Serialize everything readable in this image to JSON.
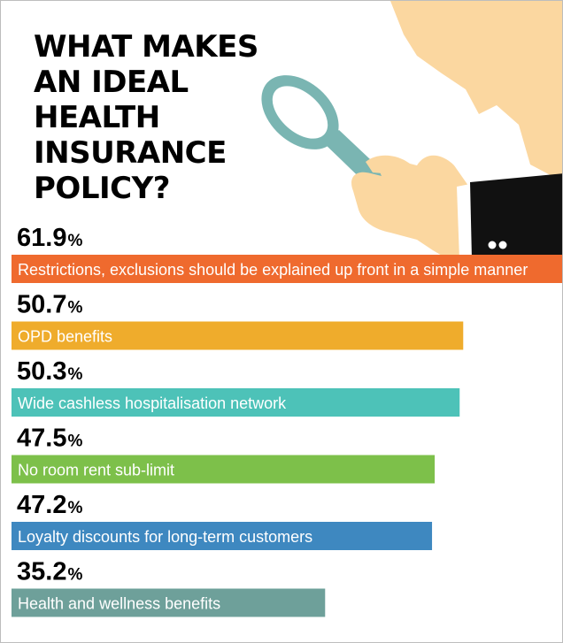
{
  "header": {
    "title_lines": [
      "WHAT MAKES",
      "AN IDEAL",
      "HEALTH",
      "INSURANCE",
      "POLICY?"
    ]
  },
  "chart_data": {
    "type": "bar",
    "orientation": "horizontal",
    "title": "WHAT MAKES AN IDEAL HEALTH INSURANCE POLICY?",
    "unit": "%",
    "grid": false,
    "legend": "none",
    "xlim": [
      0,
      61.9
    ],
    "categories": [
      "Restrictions, exclusions should be explained up front in a simple manner",
      "OPD benefits",
      "Wide cashless hospitalisation network",
      "No room rent sub-limit",
      "Loyalty discounts for long-term customers",
      "Health and wellness benefits"
    ],
    "values": [
      61.9,
      50.7,
      50.3,
      47.5,
      47.2,
      35.2
    ],
    "value_labels": [
      "61.9",
      "50.7",
      "50.3",
      "47.5",
      "47.2",
      "35.2"
    ],
    "colors": [
      "#ef6a2e",
      "#efac2c",
      "#4dc2b8",
      "#7dc04a",
      "#3e88c0",
      "#6ea09a"
    ]
  },
  "colors": {
    "skin": "#fbd7a0",
    "lens": "#7ab5b2",
    "lens_glass": "#ffffff",
    "sleeve": "#111111",
    "cuff": "#ffffff"
  }
}
